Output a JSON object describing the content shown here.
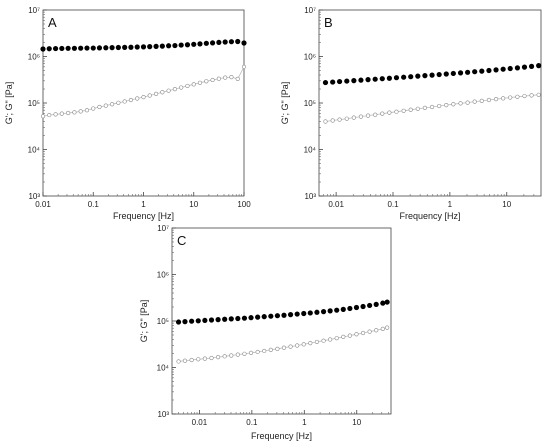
{
  "figure": {
    "background": "#ffffff"
  },
  "chart_data": [
    {
      "type": "scatter",
      "panel_label": "A",
      "xlabel": "Frequency [Hz]",
      "ylabel": "G'; G\" [Pa]",
      "xscale": "log",
      "yscale": "log",
      "xlim": [
        0.01,
        100
      ],
      "ylim": [
        1000,
        10000000
      ],
      "xticks": [
        0.01,
        0.1,
        1,
        10,
        100
      ],
      "xtick_labels": [
        "0.01",
        "0.1",
        "1",
        "10",
        "100"
      ],
      "yticks": [
        1000,
        10000,
        100000,
        1000000,
        10000000
      ],
      "ytick_labels": [
        "10³",
        "10⁴",
        "10⁵",
        "10⁶",
        "10⁷"
      ],
      "grid": false,
      "series": [
        {
          "marker": "filled",
          "color": "#000000",
          "x": [
            0.01,
            0.0133,
            0.0178,
            0.0237,
            0.0316,
            0.0422,
            0.0562,
            0.075,
            0.1,
            0.133,
            0.178,
            0.237,
            0.316,
            0.422,
            0.562,
            0.75,
            1,
            1.33,
            1.78,
            2.37,
            3.16,
            4.22,
            5.62,
            7.5,
            10,
            13.3,
            17.8,
            23.7,
            31.6,
            42.2,
            56.2,
            75,
            100
          ],
          "y": [
            1450000,
            1470000,
            1480000,
            1490000,
            1500000,
            1500000,
            1510000,
            1520000,
            1520000,
            1530000,
            1540000,
            1550000,
            1560000,
            1570000,
            1580000,
            1600000,
            1610000,
            1630000,
            1650000,
            1670000,
            1700000,
            1720000,
            1760000,
            1790000,
            1830000,
            1870000,
            1920000,
            1960000,
            2010000,
            2050000,
            2080000,
            2100000,
            1950000
          ]
        },
        {
          "marker": "open",
          "color": "#888888",
          "x": [
            0.01,
            0.0133,
            0.0178,
            0.0237,
            0.0316,
            0.0422,
            0.0562,
            0.075,
            0.1,
            0.133,
            0.178,
            0.237,
            0.316,
            0.422,
            0.562,
            0.75,
            1,
            1.33,
            1.78,
            2.37,
            3.16,
            4.22,
            5.62,
            7.5,
            10,
            13.3,
            17.8,
            23.7,
            31.6,
            42.2,
            56.2,
            75,
            100
          ],
          "y": [
            52000,
            55000,
            57000,
            59000,
            61000,
            63000,
            66000,
            70000,
            76000,
            82000,
            88000,
            94000,
            101000,
            108000,
            116000,
            125000,
            134000,
            145000,
            157000,
            170000,
            184000,
            199000,
            215000,
            233000,
            252000,
            272000,
            293000,
            313000,
            333000,
            352000,
            360000,
            330000,
            600000
          ]
        }
      ]
    },
    {
      "type": "scatter",
      "panel_label": "B",
      "xlabel": "Frequency [Hz]",
      "ylabel": "G'; G\" [Pa]",
      "xscale": "log",
      "yscale": "log",
      "xlim": [
        0.005,
        40
      ],
      "ylim": [
        1000,
        10000000
      ],
      "xticks": [
        0.01,
        0.1,
        1,
        10
      ],
      "xtick_labels": [
        "0.01",
        "0.1",
        "1",
        "10"
      ],
      "yticks": [
        1000,
        10000,
        100000,
        1000000,
        10000000
      ],
      "ytick_labels": [
        "10³",
        "10⁴",
        "10⁵",
        "10⁶",
        "10⁷"
      ],
      "grid": false,
      "series": [
        {
          "marker": "filled",
          "color": "#000000",
          "x": [
            0.0065,
            0.0087,
            0.0115,
            0.0154,
            0.0205,
            0.0273,
            0.0364,
            0.0486,
            0.0648,
            0.0864,
            0.115,
            0.154,
            0.205,
            0.273,
            0.364,
            0.486,
            0.648,
            0.864,
            1.15,
            1.54,
            2.05,
            2.73,
            3.64,
            4.86,
            6.48,
            8.64,
            11.5,
            15.4,
            20.5,
            27.3,
            36.4
          ],
          "y": [
            275000,
            282000,
            289000,
            296000,
            303000,
            310000,
            318000,
            325000,
            333000,
            341000,
            350000,
            359000,
            368000,
            378000,
            388000,
            398000,
            409000,
            420000,
            432000,
            444000,
            457000,
            471000,
            485000,
            500000,
            516000,
            533000,
            551000,
            570000,
            591000,
            613000,
            637000
          ]
        },
        {
          "marker": "open",
          "color": "#888888",
          "x": [
            0.0065,
            0.0087,
            0.0115,
            0.0154,
            0.0205,
            0.0273,
            0.0364,
            0.0486,
            0.0648,
            0.0864,
            0.115,
            0.154,
            0.205,
            0.273,
            0.364,
            0.486,
            0.648,
            0.864,
            1.15,
            1.54,
            2.05,
            2.73,
            3.64,
            4.86,
            6.48,
            8.64,
            11.5,
            15.4,
            20.5,
            27.3,
            36.4
          ],
          "y": [
            40000,
            42000,
            44000,
            46000,
            48500,
            51000,
            53500,
            56000,
            59000,
            62000,
            65000,
            68000,
            71500,
            75000,
            78500,
            82000,
            86000,
            90000,
            94000,
            98000,
            102000,
            107000,
            111000,
            116000,
            121000,
            126000,
            131000,
            136000,
            141000,
            146000,
            150000
          ]
        }
      ]
    },
    {
      "type": "scatter",
      "panel_label": "C",
      "xlabel": "Frequency [Hz]",
      "ylabel": "G'; G\" [Pa]",
      "xscale": "log",
      "yscale": "log",
      "xlim": [
        0.003,
        45
      ],
      "ylim": [
        1000,
        10000000
      ],
      "xticks": [
        0.01,
        0.1,
        1,
        10
      ],
      "xtick_labels": [
        "0.01",
        "0.1",
        "1",
        "10"
      ],
      "yticks": [
        1000,
        10000,
        100000,
        1000000,
        10000000
      ],
      "ytick_labels": [
        "10³",
        "10⁴",
        "10⁵",
        "10⁶",
        "10⁷"
      ],
      "grid": false,
      "series": [
        {
          "marker": "filled",
          "color": "#000000",
          "x": [
            0.004,
            0.0053,
            0.0071,
            0.0095,
            0.0127,
            0.017,
            0.0227,
            0.0303,
            0.0405,
            0.054,
            0.0722,
            0.0964,
            0.129,
            0.172,
            0.23,
            0.307,
            0.41,
            0.547,
            0.731,
            0.976,
            1.3,
            1.74,
            2.33,
            3.11,
            4.15,
            5.54,
            7.4,
            9.88,
            13.2,
            17.6,
            23.5,
            31.4,
            38
          ],
          "y": [
            95000,
            97000,
            99000,
            101000,
            103000,
            105000,
            107000,
            109000,
            111000,
            113000,
            115000,
            118000,
            121000,
            124000,
            127000,
            130000,
            133000,
            137000,
            141000,
            145000,
            149000,
            154000,
            159000,
            165000,
            171000,
            178000,
            186000,
            195000,
            205000,
            216000,
            228000,
            242000,
            255000
          ]
        },
        {
          "marker": "open",
          "color": "#888888",
          "x": [
            0.004,
            0.0053,
            0.0071,
            0.0095,
            0.0127,
            0.017,
            0.0227,
            0.0303,
            0.0405,
            0.054,
            0.0722,
            0.0964,
            0.129,
            0.172,
            0.23,
            0.307,
            0.41,
            0.547,
            0.731,
            0.976,
            1.3,
            1.74,
            2.33,
            3.11,
            4.15,
            5.54,
            7.4,
            9.88,
            13.2,
            17.6,
            23.5,
            31.4,
            38
          ],
          "y": [
            13500,
            14000,
            14500,
            15000,
            15500,
            16000,
            16700,
            17400,
            18100,
            18900,
            19700,
            20600,
            21600,
            22700,
            23900,
            25200,
            26600,
            28100,
            29700,
            31500,
            33400,
            35500,
            37700,
            40100,
            42700,
            45500,
            48500,
            51800,
            55300,
            59100,
            63200,
            67600,
            72000
          ]
        }
      ]
    }
  ]
}
